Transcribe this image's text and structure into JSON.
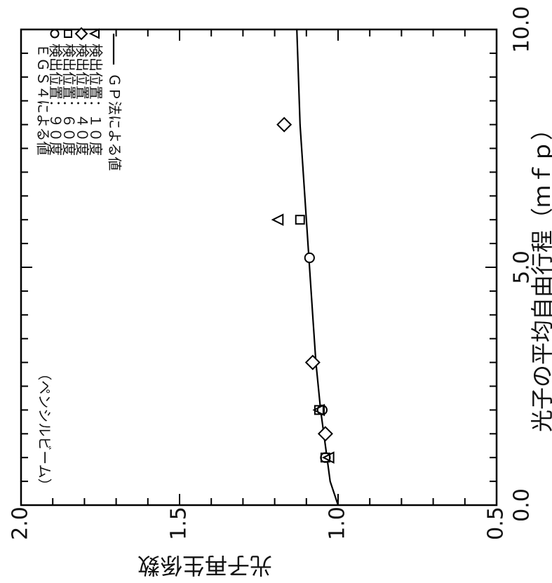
{
  "chart_data": {
    "type": "scatter",
    "title": "",
    "note": "（ペンシルビーム）",
    "xlabel": "光子の平均自由行程（ｍｆｐ）",
    "ylabel": "光子再生係数",
    "xlim": [
      0.0,
      10.0
    ],
    "ylim": [
      0.5,
      2.0
    ],
    "x_tick_labels": [
      "0.0",
      "5.0",
      "10.0"
    ],
    "x_tick_values": [
      0.0,
      5.0,
      10.0
    ],
    "y_tick_labels": [
      "2.0",
      "1.5",
      "1.0",
      "0.5"
    ],
    "y_tick_values": [
      2.0,
      1.5,
      1.0,
      0.5
    ],
    "grid": false,
    "legend_placement": "top-right",
    "legend_title": "ＥＧＳ４による値",
    "series": [
      {
        "name": "検出位置：９０度",
        "marker": "circle",
        "x": [
          1.0,
          2.0,
          5.2
        ],
        "y": [
          1.04,
          1.05,
          1.09
        ]
      },
      {
        "name": "検出位置：６０度",
        "marker": "square",
        "x": [
          1.0,
          2.0,
          6.0
        ],
        "y": [
          1.04,
          1.06,
          1.12
        ]
      },
      {
        "name": "検出位置：４０度",
        "marker": "diamond",
        "x": [
          1.5,
          3.0,
          8.0
        ],
        "y": [
          1.04,
          1.08,
          1.17
        ]
      },
      {
        "name": "検出位置：１０度",
        "marker": "triangle",
        "x": [
          1.0,
          2.0,
          6.0
        ],
        "y": [
          1.03,
          1.06,
          1.19
        ]
      }
    ],
    "line_series": {
      "name": "ＧＰ法による値",
      "x": [
        0.0,
        0.5,
        1.0,
        2.0,
        3.0,
        4.0,
        5.0,
        6.0,
        7.0,
        8.0,
        9.0,
        10.0
      ],
      "y": [
        1.0,
        1.025,
        1.035,
        1.055,
        1.07,
        1.08,
        1.09,
        1.1,
        1.11,
        1.12,
        1.125,
        1.13
      ]
    }
  }
}
